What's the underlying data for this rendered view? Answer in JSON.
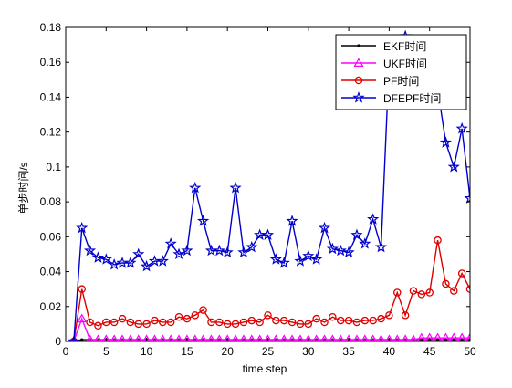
{
  "chart_data": {
    "type": "line",
    "xlabel": "time step",
    "ylabel": "单步时间/s",
    "xlim": [
      0,
      50
    ],
    "ylim": [
      0,
      0.18
    ],
    "xticks": [
      0,
      5,
      10,
      15,
      20,
      25,
      30,
      35,
      40,
      45,
      50
    ],
    "yticks": [
      0,
      0.02,
      0.04,
      0.06,
      0.08,
      0.1,
      0.12,
      0.14,
      0.16,
      0.18
    ],
    "ytick_labels": [
      "0",
      "0.02",
      "0.04",
      "0.06",
      "0.08",
      "0.1",
      "0.12",
      "0.14",
      "0.16",
      "0.18"
    ],
    "grid": false,
    "legend_position": "top-right",
    "x": [
      1,
      2,
      3,
      4,
      5,
      6,
      7,
      8,
      9,
      10,
      11,
      12,
      13,
      14,
      15,
      16,
      17,
      18,
      19,
      20,
      21,
      22,
      23,
      24,
      25,
      26,
      27,
      28,
      29,
      30,
      31,
      32,
      33,
      34,
      35,
      36,
      37,
      38,
      39,
      40,
      41,
      42,
      43,
      44,
      45,
      46,
      47,
      48,
      49,
      50
    ],
    "series": [
      {
        "name": "EKF时间",
        "color": "#000000",
        "marker": "dot",
        "values": [
          0,
          0.001,
          0.001,
          0.001,
          0.001,
          0.001,
          0.001,
          0.001,
          0.001,
          0.001,
          0.001,
          0.001,
          0.001,
          0.001,
          0.001,
          0.001,
          0.001,
          0.001,
          0.001,
          0.001,
          0.001,
          0.001,
          0.001,
          0.001,
          0.001,
          0.001,
          0.001,
          0.001,
          0.001,
          0.001,
          0.001,
          0.001,
          0.001,
          0.001,
          0.001,
          0.001,
          0.001,
          0.001,
          0.001,
          0.001,
          0.001,
          0.001,
          0.001,
          0.001,
          0.001,
          0.001,
          0.001,
          0.001,
          0.001,
          0.001
        ]
      },
      {
        "name": "UKF时间",
        "color": "#ff00ff",
        "marker": "triangle",
        "values": [
          0,
          0.013,
          0.001,
          0.001,
          0.001,
          0.001,
          0.001,
          0.001,
          0.001,
          0.001,
          0.001,
          0.001,
          0.001,
          0.001,
          0.001,
          0.001,
          0.001,
          0.001,
          0.001,
          0.001,
          0.001,
          0.001,
          0.001,
          0.001,
          0.001,
          0.001,
          0.001,
          0.001,
          0.001,
          0.001,
          0.001,
          0.001,
          0.001,
          0.001,
          0.001,
          0.001,
          0.001,
          0.001,
          0.001,
          0.001,
          0.001,
          0.001,
          0.001,
          0.002,
          0.002,
          0.002,
          0.002,
          0.002,
          0.002,
          0.002
        ]
      },
      {
        "name": "PF时间",
        "color": "#dd0000",
        "marker": "circle",
        "values": [
          0,
          0.03,
          0.011,
          0.009,
          0.011,
          0.011,
          0.013,
          0.011,
          0.01,
          0.01,
          0.012,
          0.011,
          0.011,
          0.014,
          0.013,
          0.015,
          0.018,
          0.011,
          0.011,
          0.01,
          0.01,
          0.011,
          0.012,
          0.011,
          0.015,
          0.012,
          0.012,
          0.011,
          0.01,
          0.01,
          0.013,
          0.011,
          0.014,
          0.012,
          0.012,
          0.011,
          0.012,
          0.012,
          0.013,
          0.015,
          0.028,
          0.015,
          0.029,
          0.027,
          0.028,
          0.058,
          0.033,
          0.029,
          0.039,
          0.03
        ]
      },
      {
        "name": "DFEPF时间",
        "color": "#0000cc",
        "marker": "star",
        "values": [
          0,
          0.065,
          0.052,
          0.048,
          0.047,
          0.044,
          0.045,
          0.045,
          0.05,
          0.043,
          0.046,
          0.046,
          0.056,
          0.05,
          0.052,
          0.088,
          0.069,
          0.052,
          0.052,
          0.051,
          0.088,
          0.051,
          0.054,
          0.061,
          0.061,
          0.047,
          0.045,
          0.069,
          0.046,
          0.049,
          0.047,
          0.065,
          0.053,
          0.052,
          0.051,
          0.061,
          0.056,
          0.07,
          0.054,
          0.16,
          0.165,
          0.175,
          0.16,
          0.16,
          0.16,
          0.145,
          0.114,
          0.1,
          0.122,
          0.082
        ]
      }
    ]
  }
}
